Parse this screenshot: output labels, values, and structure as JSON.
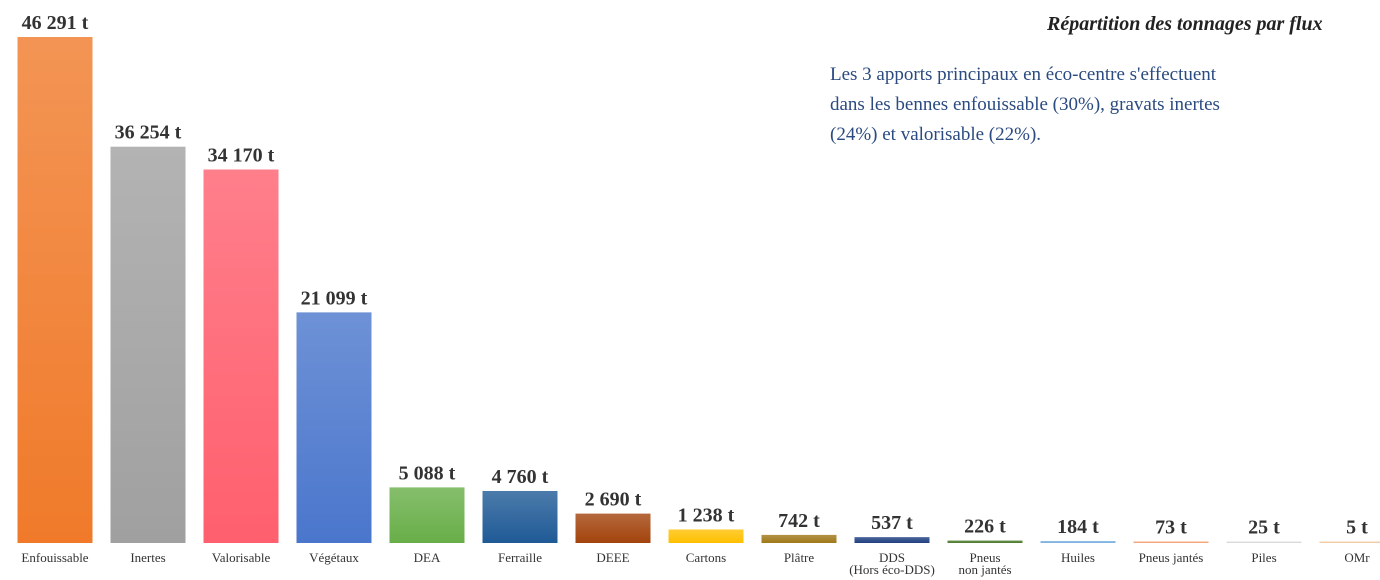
{
  "chart_data": {
    "type": "bar",
    "title": "Répartition des tonnages par flux",
    "text": [
      "Les 3 apports principaux en éco-centre s'effectuent",
      "dans les bennes enfouissable (30%), gravats inertes",
      "(24%) et valorisable (22%)."
    ],
    "categories": [
      "Enfouissable",
      "Inertes",
      "Valorisable",
      "Végétaux",
      "DEA",
      "Ferraille",
      "DEEE",
      "Cartons",
      "Plâtre",
      "DDS\n(Hors éco-DDS)",
      "Pneus\nnon jantés",
      "Huiles",
      "Pneus jantés",
      "Piles",
      "OMr"
    ],
    "values": [
      46291,
      36254,
      34170,
      21099,
      5088,
      4760,
      2690,
      1238,
      742,
      537,
      226,
      184,
      73,
      25,
      5
    ],
    "value_labels": [
      "46 291 t",
      "36 254 t",
      "34 170 t",
      "21 099 t",
      "5 088 t",
      "4 760 t",
      "2 690 t",
      "1 238 t",
      "742 t",
      "537 t",
      "226 t",
      "184 t",
      "73 t",
      "25 t",
      "5 t"
    ],
    "colors": [
      "#f07a2a",
      "#a0a0a0",
      "#ff5f6e",
      "#4a76cc",
      "#68ae48",
      "#1f5a96",
      "#a3430c",
      "#ffc000",
      "#a07818",
      "#1f3f80",
      "#4a7a2a",
      "#7ab0e0",
      "#f4a070",
      "#d8d8d8",
      "#f0c8a0"
    ]
  }
}
